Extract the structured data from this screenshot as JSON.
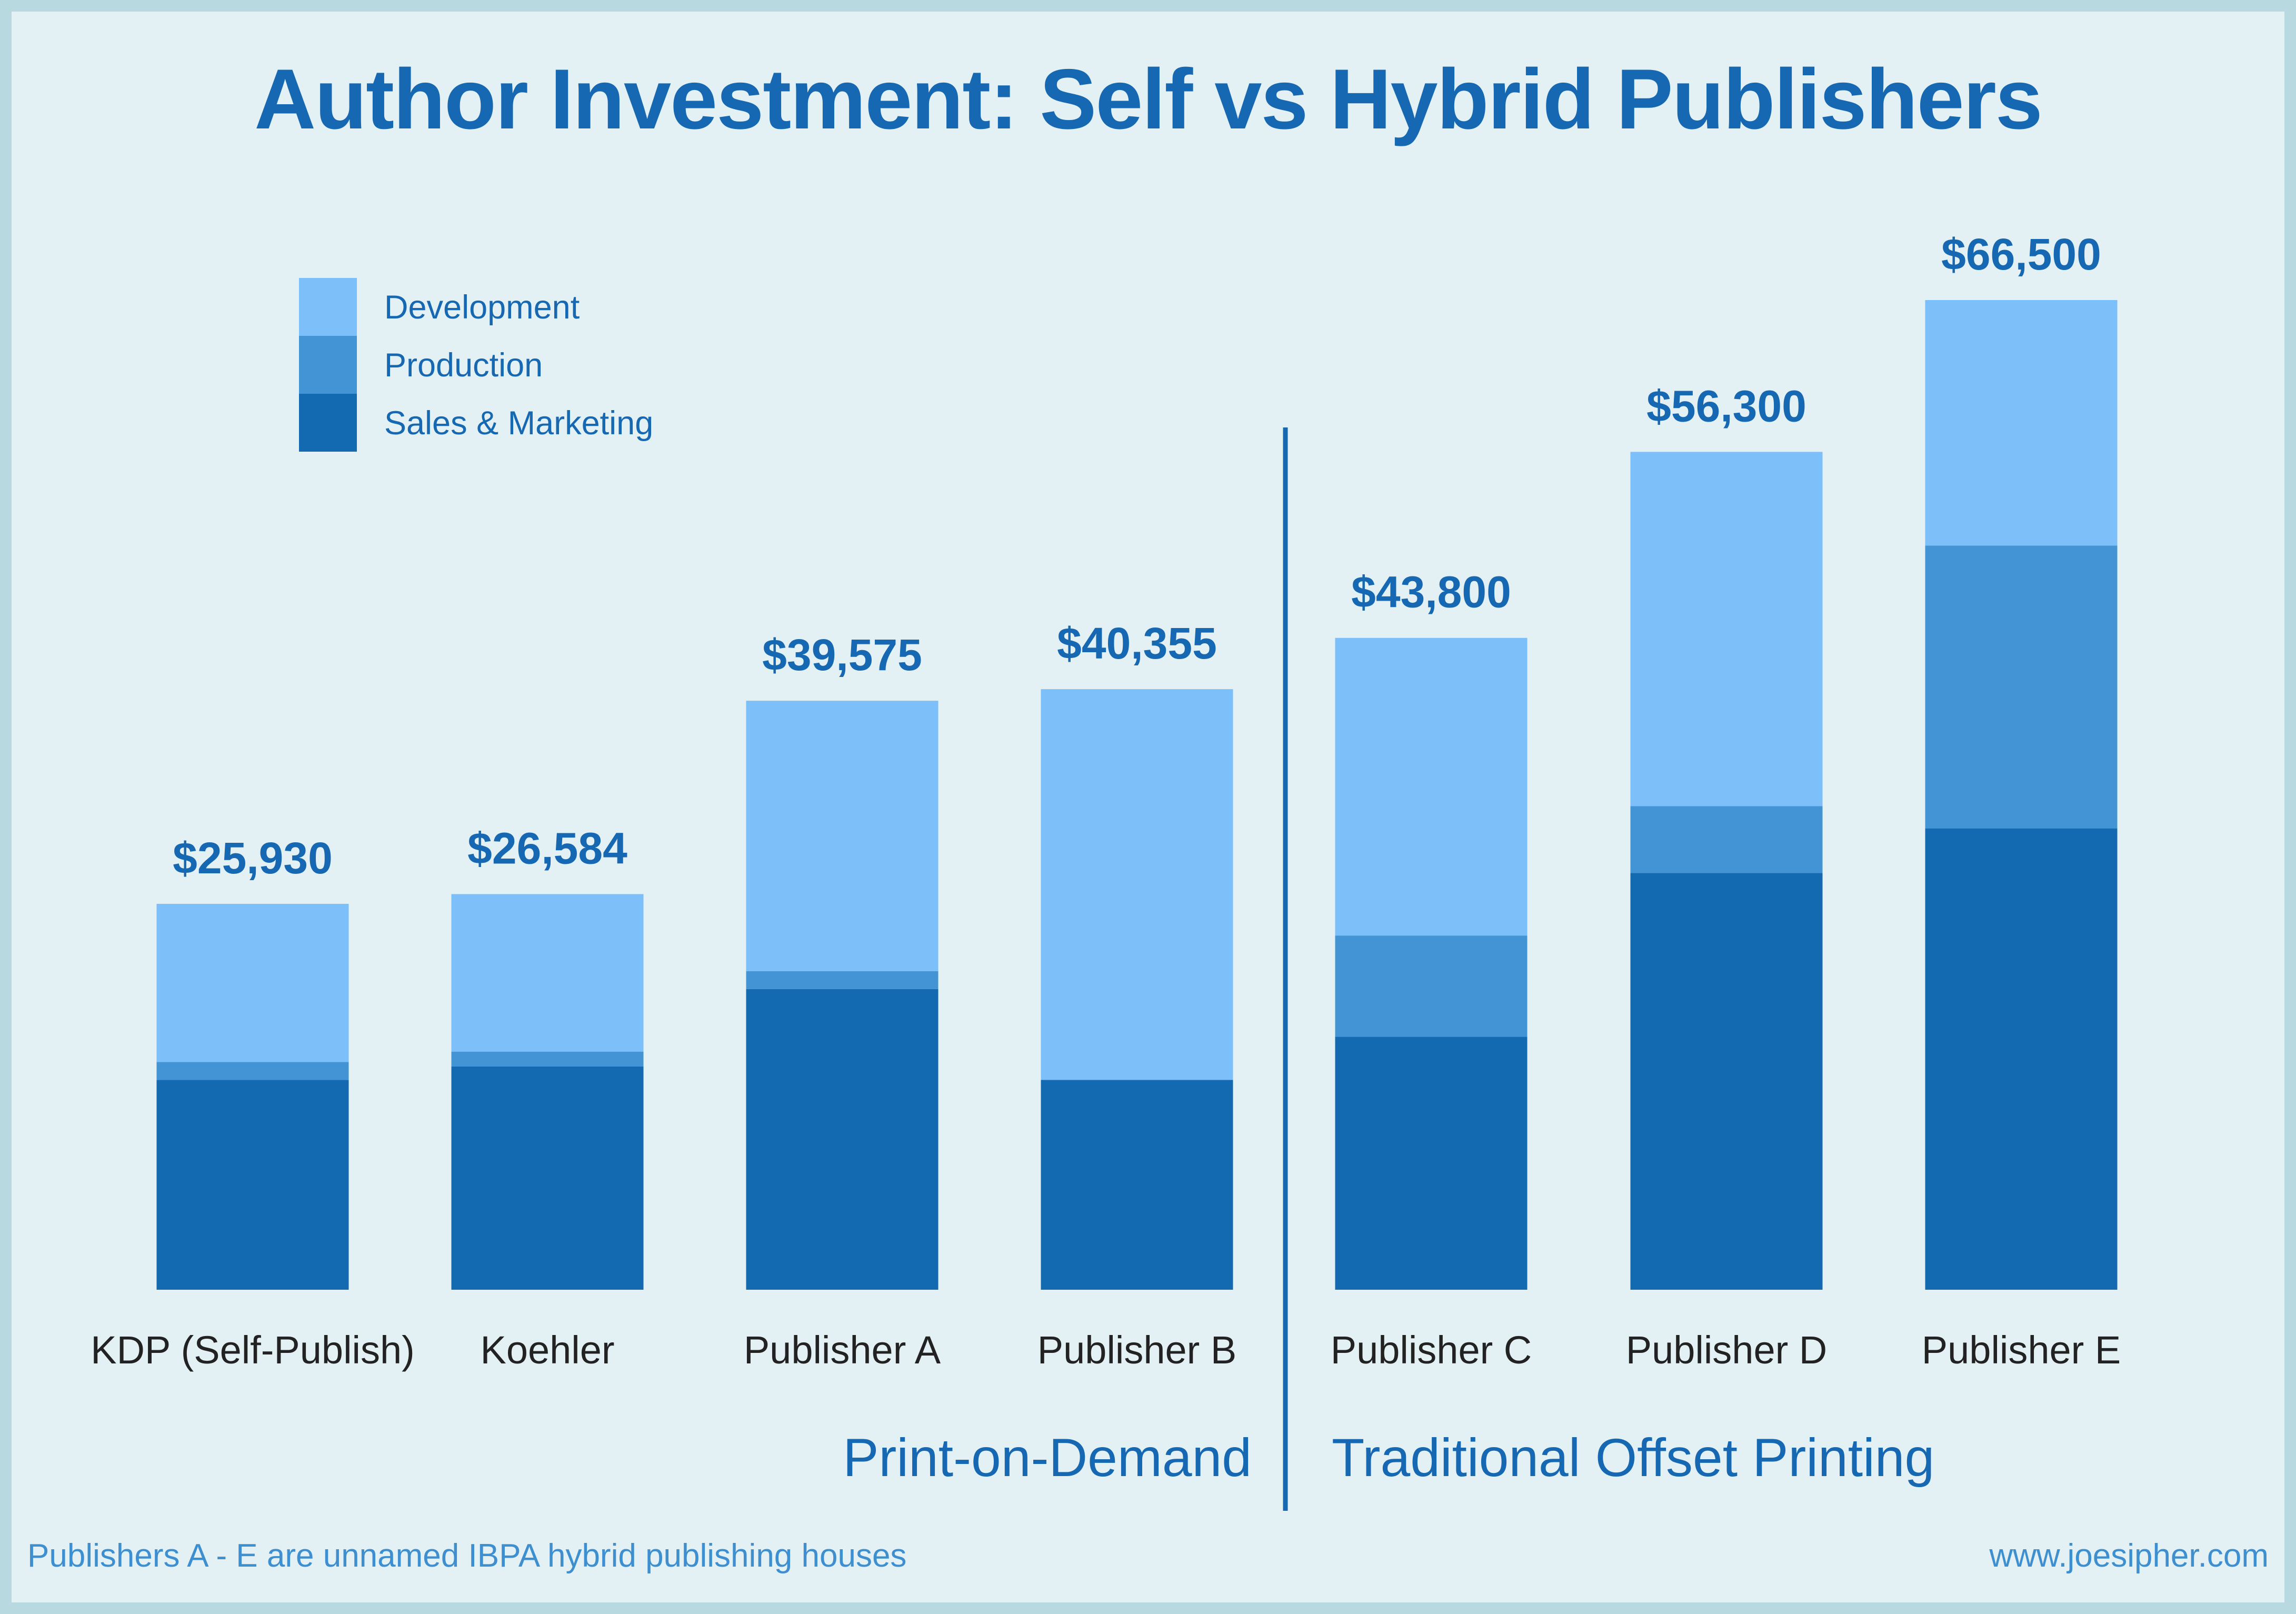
{
  "footer": {
    "note": "Publishers A - E are unnamed IBPA hybrid publishing houses",
    "site": "www.joesipher.com"
  },
  "colors": {
    "background": "#e3f0f4",
    "border": "#b9d9e0",
    "title": "#1568b1",
    "category_text": "#222222",
    "footer_text": "#3d8fd0",
    "Development": "#7cbff9",
    "Production": "#4394d4",
    "Sales & Marketing": "#146ab0"
  },
  "chart_data": {
    "type": "bar",
    "stacked": true,
    "title": "Author Investment:  Self vs Hybrid Publishers",
    "categories": [
      "KDP (Self-Publish)",
      "Koehler",
      "Publisher A",
      "Publisher B",
      "Publisher C",
      "Publisher D",
      "Publisher E"
    ],
    "series": [
      {
        "name": "Sales & Marketing",
        "values": [
          14100,
          15000,
          20200,
          14100,
          17000,
          28000,
          31000
        ]
      },
      {
        "name": "Production",
        "values": [
          1200,
          1000,
          1200,
          0,
          6800,
          4500,
          19000
        ]
      },
      {
        "name": "Development",
        "values": [
          10630,
          10584,
          18175,
          26255,
          20000,
          23800,
          16500
        ]
      }
    ],
    "totals": [
      25930,
      26584,
      39575,
      40355,
      43800,
      56300,
      66500
    ],
    "total_labels": [
      "$25,930",
      "$26,584",
      "$39,575",
      "$40,355",
      "$43,800",
      "$56,300",
      "$66,500"
    ],
    "groups": [
      {
        "label": "Print-on-Demand",
        "categories": [
          "KDP (Self-Publish)",
          "Koehler",
          "Publisher A",
          "Publisher B"
        ]
      },
      {
        "label": "Traditional Offset Printing",
        "categories": [
          "Publisher C",
          "Publisher D",
          "Publisher E"
        ]
      }
    ],
    "legend_position": "top-left",
    "legend_order": [
      "Development",
      "Production",
      "Sales & Marketing"
    ],
    "grid": false,
    "y_axis_visible": false,
    "ylim": [
      0,
      66500
    ]
  }
}
